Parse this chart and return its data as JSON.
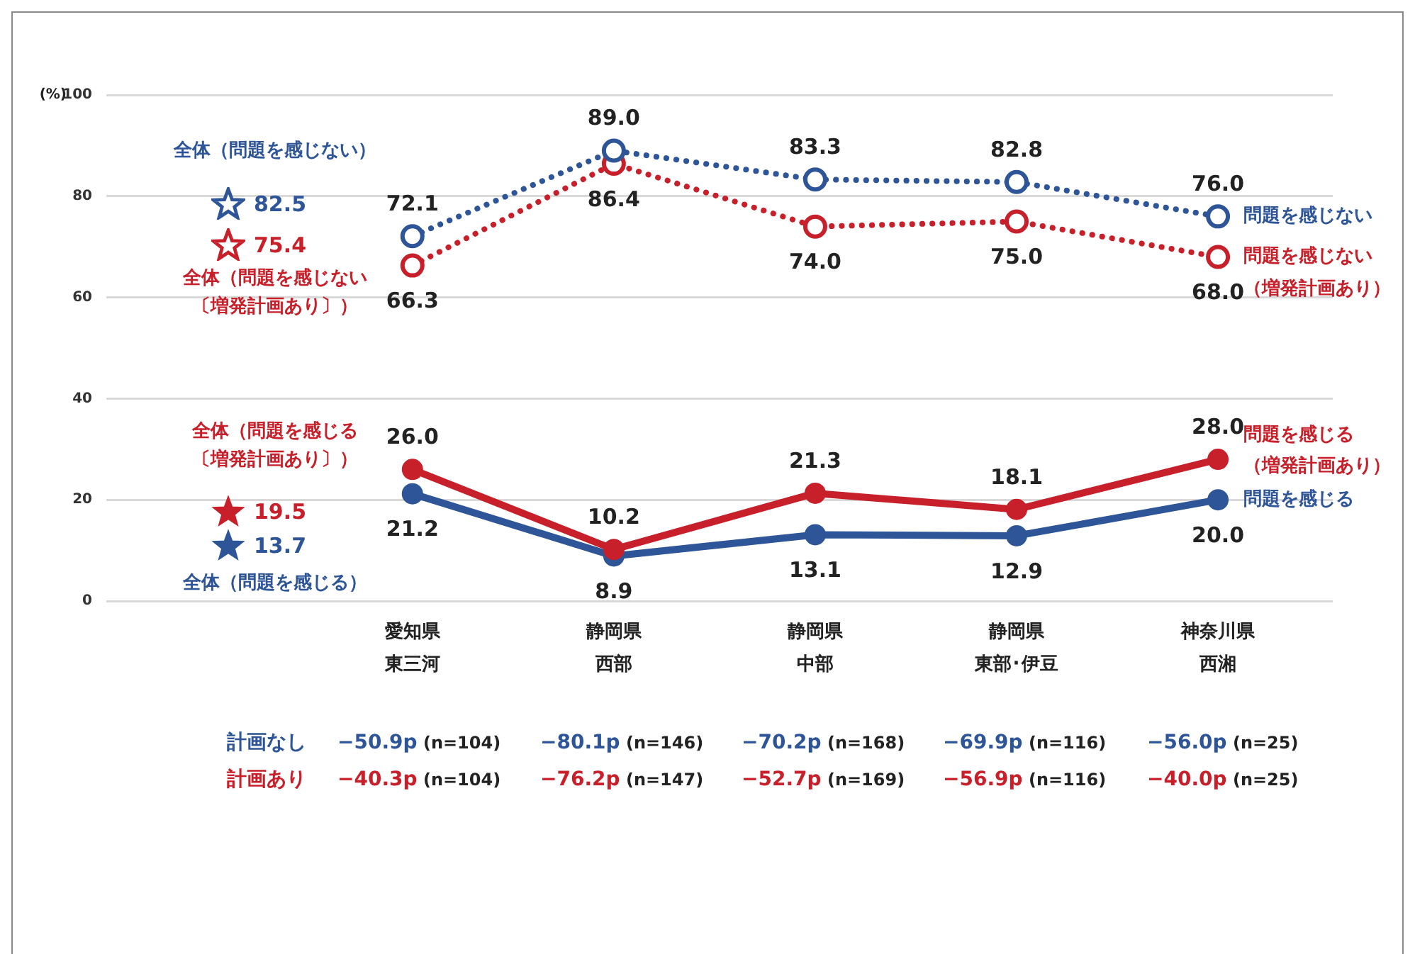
{
  "chart_data": {
    "type": "line",
    "ylabel": "(%)",
    "categories": [
      "愛知県東三河",
      "静岡県西部",
      "静岡県中部",
      "静岡県東部･伊豆",
      "神奈川県西湘"
    ],
    "series": [
      {
        "name": "問題を感じない",
        "color": "#2e5597",
        "line_style": "dotted",
        "values": [
          72.1,
          89.0,
          83.3,
          82.8,
          76.0
        ],
        "value_labels": [
          "72.1",
          "89.0",
          "83.3",
          "82.8",
          "76.0"
        ]
      },
      {
        "name": "問題を感じない（増発計画あり）",
        "color": "#c8202a",
        "line_style": "dotted",
        "values": [
          66.3,
          86.4,
          74.0,
          75.0,
          68.0
        ],
        "value_labels": [
          "66.3",
          "86.4",
          "74.0",
          "75.0",
          "68.0"
        ]
      },
      {
        "name": "問題を感じる（増発計画あり）",
        "color": "#c8202a",
        "line_style": "solid",
        "values": [
          26.0,
          10.2,
          21.3,
          18.1,
          28.0
        ],
        "value_labels": [
          "26.0",
          "10.2",
          "21.3",
          "18.1",
          "28.0"
        ]
      },
      {
        "name": "問題を感じる",
        "color": "#2e5597",
        "line_style": "solid",
        "values": [
          21.2,
          8.9,
          13.1,
          12.9,
          20.0
        ],
        "value_labels": [
          "21.2",
          "8.9",
          "13.1",
          "12.9",
          "20.0"
        ]
      }
    ],
    "ylim": [
      0,
      100
    ],
    "yticks": [
      0,
      20,
      40,
      60,
      80,
      100
    ],
    "grid": "y",
    "legend": false,
    "marker": "circle",
    "annotations": [
      "全体（問題を感じない）",
      "82.5",
      "75.4",
      "全体（問題を感じない〔増発計画あり〕）",
      "全体（問題を感じる〔増発計画あり〕）",
      "19.5",
      "13.7",
      "全体（問題を感じる）",
      "計画なし",
      "−50.9p (n=104)",
      "−80.1p (n=146)",
      "−70.2p (n=168)",
      "−69.9p (n=116)",
      "−56.0p (n=25)",
      "計画あり",
      "−40.3p (n=104)",
      "−76.2p (n=147)",
      "−52.7p (n=169)",
      "−56.9p (n=116)",
      "−40.0p (n=25)"
    ]
  }
}
